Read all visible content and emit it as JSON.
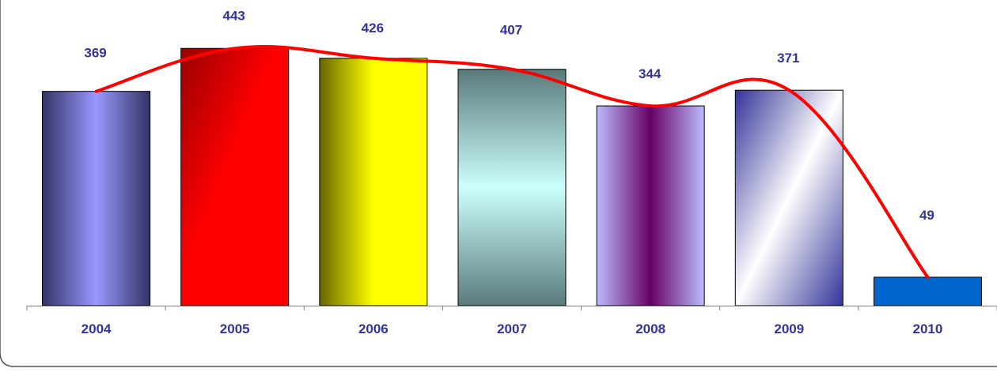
{
  "chart_data": {
    "type": "bar",
    "categories": [
      "2004",
      "2005",
      "2006",
      "2007",
      "2008",
      "2009",
      "2010"
    ],
    "values": [
      369,
      443,
      426,
      407,
      344,
      371,
      49
    ],
    "title": "",
    "xlabel": "",
    "ylabel": "",
    "ylim": [
      0,
      510
    ],
    "grid": false,
    "legend": "none",
    "overlay_line": "smoothed trend line through bar tops",
    "colors": {
      "bars": [
        "#9999ff",
        "#ff0000",
        "#ffff00",
        "#ccffff",
        "#660066",
        "#ffffff",
        "#0066cc"
      ],
      "bar_dark": [
        "#333366",
        "#990000",
        "#666600",
        "#5a7a7a",
        "#bbbbff",
        "#333399",
        "#0066cc"
      ],
      "label_color": "#333399",
      "line_color": "#ff0000",
      "axis_color": "#808080"
    }
  }
}
